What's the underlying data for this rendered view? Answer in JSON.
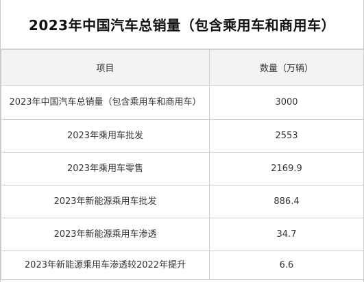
{
  "table": {
    "title": "2023年中国汽车总销量（包含乘用车和商用车）",
    "headers": {
      "item": "项目",
      "quantity": "数量（万辆）"
    },
    "rows": [
      {
        "item": "2023年中国汽车总销量（包含乘用车和商用车）",
        "value": "3000"
      },
      {
        "item": "2023年乘用车批发",
        "value": "2553"
      },
      {
        "item": "2023年乘用车零售",
        "value": "2169.9"
      },
      {
        "item": "2023年新能源乘用车批发",
        "value": "886.4"
      },
      {
        "item": "2023年新能源乘用车渗透",
        "value": "34.7"
      },
      {
        "item": "2023年新能源乘用车渗透较2022年提升",
        "value": "6.6"
      }
    ]
  }
}
